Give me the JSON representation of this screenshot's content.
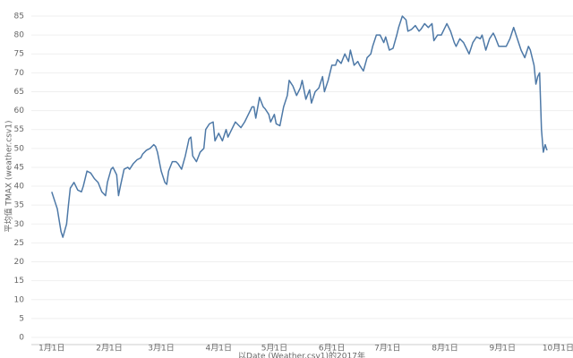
{
  "chart_data": {
    "type": "line",
    "y_label": "平均值 TMAX (weather.csv1)",
    "x_label": "以Date (Weather.csv1)的2017年",
    "color": "#4e79a7",
    "grid": true,
    "x": [
      0,
      2,
      3,
      5,
      6,
      8,
      9,
      10,
      12,
      14,
      16,
      17,
      19,
      21,
      23,
      25,
      27,
      29,
      30,
      32,
      33,
      35,
      36,
      37,
      39,
      41,
      42,
      44,
      46,
      48,
      49,
      51,
      53,
      55,
      56,
      57,
      59,
      61,
      62,
      63,
      65,
      67,
      68,
      70,
      72,
      74,
      75,
      76,
      78,
      80,
      82,
      83,
      85,
      87,
      88,
      90,
      92,
      94,
      95,
      97,
      99,
      101,
      102,
      104,
      106,
      108,
      109,
      110,
      112,
      114,
      115,
      117,
      118,
      120,
      121,
      123,
      125,
      127,
      128,
      130,
      132,
      134,
      135,
      137,
      139,
      140,
      142,
      144,
      146,
      147,
      149,
      151,
      153,
      154,
      156,
      158,
      160,
      161,
      163,
      165,
      166,
      168,
      170,
      172,
      173,
      175,
      177,
      179,
      180,
      182,
      184,
      186,
      187,
      189,
      191,
      192,
      194,
      196,
      198,
      199,
      201,
      203,
      205,
      206,
      208,
      210,
      212,
      213,
      215,
      217,
      218,
      220,
      222,
      224,
      225,
      227,
      229,
      231,
      232,
      234,
      236,
      238,
      239,
      241,
      245,
      247,
      249,
      251,
      253,
      255,
      257,
      258,
      260,
      261,
      262,
      263,
      264,
      265,
      266,
      267
    ],
    "values": [
      38.5,
      35.5,
      34,
      28,
      26.5,
      30,
      35,
      39.5,
      41,
      39,
      38.5,
      40,
      44,
      43.5,
      42,
      41,
      38.5,
      37.5,
      41,
      44.5,
      45,
      43,
      37.5,
      40,
      44.5,
      45,
      44.5,
      46,
      47,
      47.5,
      48.5,
      49.5,
      50,
      51,
      50.5,
      49,
      44,
      41,
      40.5,
      44,
      46.5,
      46.5,
      46,
      44.5,
      48,
      52.5,
      53,
      48,
      46.5,
      49,
      50,
      55,
      56.5,
      57,
      52,
      54,
      52,
      55,
      53,
      55,
      57,
      56,
      55.5,
      57,
      59,
      61,
      61,
      58,
      63.5,
      61,
      60.5,
      59,
      57,
      59,
      56.5,
      56,
      61,
      64,
      68,
      66.5,
      64,
      66,
      68,
      63,
      65.5,
      62,
      65,
      66,
      69,
      65,
      68,
      72,
      72,
      73.5,
      72.5,
      75,
      73,
      76,
      72,
      73,
      72,
      70.5,
      74,
      75,
      77,
      80,
      80,
      78,
      79.5,
      76,
      76.5,
      80,
      82,
      85,
      84,
      81,
      81.5,
      82.5,
      81,
      81.5,
      83,
      82,
      83,
      78.5,
      80,
      80,
      82,
      83,
      81,
      78,
      77,
      79,
      78,
      76,
      75,
      78,
      79.5,
      79,
      80,
      76,
      79,
      80.5,
      79.5,
      77,
      77,
      79,
      82,
      79,
      76,
      74,
      77,
      76,
      72,
      67,
      69,
      70,
      55,
      49,
      51,
      49.5
    ],
    "xlim": [
      -11,
      281
    ],
    "xticks": [
      {
        "value": 0,
        "label": "1月1日"
      },
      {
        "value": 31,
        "label": "2月1日"
      },
      {
        "value": 59,
        "label": "3月1日"
      },
      {
        "value": 90,
        "label": "4月1日"
      },
      {
        "value": 120,
        "label": "5月1日"
      },
      {
        "value": 151,
        "label": "6月1日"
      },
      {
        "value": 181,
        "label": "7月1日"
      },
      {
        "value": 212,
        "label": "8月1日"
      },
      {
        "value": 243,
        "label": "9月1日"
      },
      {
        "value": 273,
        "label": "10月1日"
      }
    ],
    "ylim": [
      0,
      85
    ],
    "yticks": [
      0,
      5,
      10,
      15,
      20,
      25,
      30,
      35,
      40,
      45,
      50,
      55,
      60,
      65,
      70,
      75,
      80,
      85
    ]
  }
}
